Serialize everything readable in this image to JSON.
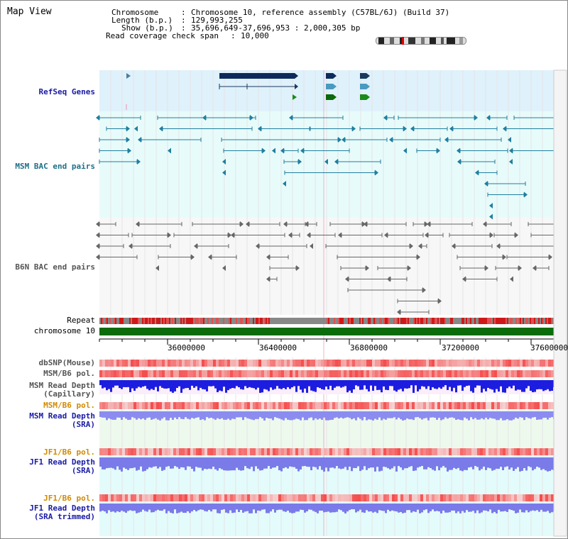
{
  "page": {
    "title": "Map View"
  },
  "info": {
    "chromosome_label": "Chromosome",
    "chromosome_value": "Chromosome 10, reference assembly (C57BL/6J) (Build 37)",
    "length_label": "Length (b.p.)",
    "length_value": "129,993,255",
    "show_label": "Show (b.p.)",
    "show_value": "35,696,649-37,696,953 : 2,000,305 bp",
    "coverage_label": "Read coverage check span",
    "coverage_value": "10,000"
  },
  "tracks": {
    "refseq": "RefSeq Genes",
    "msm_bac": "MSM BAC end pairs",
    "b6n_bac": "B6N BAC end pairs",
    "repeat": "Repeat",
    "chromosome": "chromosome 10",
    "dbsnp": "dbSNP(Mouse)",
    "msm_b6_pol_1": "MSM/B6 pol.",
    "msm_read_depth_cap": "MSM Read Depth\n(Capillary)",
    "msm_b6_pol_2": "MSM/B6 pol.",
    "msm_read_depth_sra": "MSM Read Depth\n(SRA)",
    "jf1_b6_pol_1": "JF1/B6 pol.",
    "jf1_read_depth_sra": "JF1 Read Depth\n(SRA)",
    "jf1_b6_pol_2": "JF1/B6 pol.",
    "jf1_read_depth_trim": "JF1 Read Depth\n(SRA trimmed)"
  },
  "axis": {
    "ticks": [
      "36000000",
      "36400000",
      "36800000",
      "37200000",
      "37600000"
    ]
  },
  "colors": {
    "refseq_bg": "#dff1fb",
    "msm_bg": "#e8fbfb",
    "b6n_bg": "#f7f7f7",
    "read_bg": "#e8fbfb",
    "msm_feature": "#1f7f9f",
    "b6n_feature": "#666666",
    "depth_blue": "#1d1de0",
    "depth_light": "#8c8cf0",
    "pol_red": "#f03c3c",
    "chromosome_green": "#0c6c0c"
  }
}
